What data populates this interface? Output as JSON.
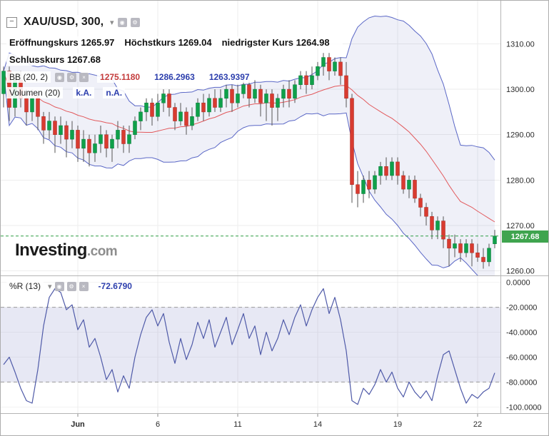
{
  "header": {
    "symbol_title": "XAU/USD, 300,",
    "ohlc": [
      {
        "label": "Eröffnungskurs",
        "value": "1265.97"
      },
      {
        "label": "Höchstkurs",
        "value": "1269.04"
      },
      {
        "label": "niedrigster Kurs",
        "value": "1264.98"
      },
      {
        "label": "Schlusskurs",
        "value": "1267.68"
      }
    ]
  },
  "indicators": {
    "bb": {
      "label": "BB (20, 2)",
      "values": [
        "1275.1180",
        "1286.2963",
        "1263.9397"
      ]
    },
    "volume": {
      "label": "Volumen (20)",
      "values": [
        "k.A.",
        "n.A."
      ]
    },
    "wr": {
      "label": "%R (13)",
      "value": "-72.6790"
    }
  },
  "icons": {
    "collapse": "−",
    "caret": "▾",
    "eye": "◉",
    "gear": "⚙",
    "close": "×"
  },
  "logo": {
    "brand": "Investing",
    "tld": ".com"
  },
  "price_badge": {
    "value": "1267.68"
  },
  "colors": {
    "up_body": "#0fa04a",
    "up_border": "#0b7d3a",
    "down_body": "#d83b30",
    "down_border": "#a82c24",
    "wick": "#555555",
    "bb_line": "#5a67c6",
    "bb_fill": "rgba(100,110,190,0.10)",
    "bb_mid": "#e2595c",
    "grid": "#ededed",
    "axis_text": "#2a2a2a",
    "price_line": "#2f9e44",
    "badge_bg": "#3fa44e",
    "wr_line": "#4f5aa8",
    "wr_band": "rgba(105,112,185,0.16)",
    "wr_dash": "#9b9b9b",
    "value_blue": "#2d3fad",
    "value_red": "#c43c3c"
  },
  "chart_data": [
    {
      "type": "candlestick",
      "title": "XAU/USD 300-minute candles with Bollinger Bands (20,2)",
      "ylim": [
        1259,
        1319.5
      ],
      "x_offset": 4,
      "x_step": 8,
      "body_w": 5,
      "last_price": 1267.68,
      "price_ticks": [
        {
          "price": 1310,
          "label": "1310.00"
        },
        {
          "price": 1300,
          "label": "1300.00"
        },
        {
          "price": 1290,
          "label": "1290.00"
        },
        {
          "price": 1280,
          "label": "1280.00"
        },
        {
          "price": 1270,
          "label": "1270.00"
        },
        {
          "price": 1260,
          "label": "1260.00"
        }
      ],
      "x_ticks": [
        {
          "i": 13,
          "label": "Jun",
          "bold": true
        },
        {
          "i": 27,
          "label": "6"
        },
        {
          "i": 41,
          "label": "11"
        },
        {
          "i": 55,
          "label": "14"
        },
        {
          "i": 69,
          "label": "19"
        },
        {
          "i": 83,
          "label": "22"
        }
      ],
      "bollinger": {
        "period": 20,
        "mult": 2,
        "middle": "1275.1180",
        "upper": "1286.2963",
        "lower": "1263.9397"
      },
      "candles": [
        [
          1299,
          1305,
          1296,
          1304
        ],
        [
          1304,
          1305,
          1293,
          1296
        ],
        [
          1296,
          1303,
          1294,
          1302
        ],
        [
          1302,
          1304,
          1296,
          1298
        ],
        [
          1298,
          1300,
          1292,
          1295
        ],
        [
          1295,
          1300,
          1293,
          1298
        ],
        [
          1298,
          1299,
          1291,
          1294
        ],
        [
          1294,
          1295,
          1288,
          1291
        ],
        [
          1291,
          1295,
          1289,
          1293
        ],
        [
          1293,
          1294,
          1286,
          1290
        ],
        [
          1290,
          1294,
          1288,
          1292
        ],
        [
          1292,
          1293,
          1285,
          1289
        ],
        [
          1289,
          1293,
          1287,
          1291
        ],
        [
          1291,
          1292,
          1284,
          1287
        ],
        [
          1287,
          1291,
          1284,
          1289
        ],
        [
          1289,
          1290,
          1283,
          1286
        ],
        [
          1286,
          1290,
          1284,
          1288
        ],
        [
          1288,
          1292,
          1286,
          1290
        ],
        [
          1290,
          1291,
          1285,
          1287
        ],
        [
          1287,
          1290,
          1284,
          1289
        ],
        [
          1289,
          1293,
          1287,
          1291
        ],
        [
          1291,
          1292,
          1286,
          1288
        ],
        [
          1288,
          1292,
          1286,
          1290
        ],
        [
          1290,
          1294,
          1289,
          1293
        ],
        [
          1293,
          1296,
          1291,
          1295
        ],
        [
          1295,
          1298,
          1293,
          1297
        ],
        [
          1297,
          1298,
          1292,
          1294
        ],
        [
          1294,
          1299,
          1293,
          1297
        ],
        [
          1297,
          1300,
          1295,
          1299
        ],
        [
          1299,
          1300,
          1294,
          1296
        ],
        [
          1296,
          1297,
          1291,
          1293
        ],
        [
          1293,
          1297,
          1292,
          1295
        ],
        [
          1295,
          1296,
          1290,
          1292
        ],
        [
          1292,
          1296,
          1291,
          1294
        ],
        [
          1294,
          1298,
          1293,
          1297
        ],
        [
          1297,
          1299,
          1293,
          1295
        ],
        [
          1295,
          1299,
          1294,
          1298
        ],
        [
          1298,
          1300,
          1295,
          1296
        ],
        [
          1296,
          1300,
          1295,
          1298
        ],
        [
          1298,
          1301,
          1296,
          1300
        ],
        [
          1300,
          1301,
          1295,
          1297
        ],
        [
          1297,
          1301,
          1296,
          1299
        ],
        [
          1299,
          1302,
          1298,
          1301
        ],
        [
          1301,
          1302,
          1296,
          1298
        ],
        [
          1298,
          1302,
          1297,
          1300
        ],
        [
          1300,
          1301,
          1294,
          1297
        ],
        [
          1297,
          1300,
          1293,
          1299
        ],
        [
          1299,
          1300,
          1292,
          1296
        ],
        [
          1296,
          1299,
          1293,
          1298
        ],
        [
          1298,
          1301,
          1296,
          1300
        ],
        [
          1300,
          1302,
          1296,
          1298
        ],
        [
          1298,
          1302,
          1297,
          1301
        ],
        [
          1301,
          1304,
          1300,
          1303
        ],
        [
          1303,
          1304,
          1299,
          1301
        ],
        [
          1301,
          1305,
          1300,
          1303
        ],
        [
          1303,
          1306,
          1302,
          1305
        ],
        [
          1305,
          1308,
          1303,
          1307
        ],
        [
          1307,
          1308,
          1302,
          1304
        ],
        [
          1304,
          1307,
          1303,
          1306
        ],
        [
          1306,
          1307,
          1301,
          1303
        ],
        [
          1303,
          1306,
          1296,
          1298
        ],
        [
          1298,
          1299,
          1275,
          1279
        ],
        [
          1279,
          1282,
          1274,
          1277
        ],
        [
          1277,
          1281,
          1275,
          1280
        ],
        [
          1280,
          1282,
          1276,
          1278
        ],
        [
          1278,
          1282,
          1277,
          1281
        ],
        [
          1281,
          1284,
          1279,
          1283
        ],
        [
          1283,
          1285,
          1280,
          1281
        ],
        [
          1281,
          1285,
          1280,
          1284
        ],
        [
          1284,
          1285,
          1279,
          1281
        ],
        [
          1281,
          1282,
          1277,
          1278
        ],
        [
          1278,
          1281,
          1276,
          1280
        ],
        [
          1280,
          1281,
          1275,
          1276
        ],
        [
          1276,
          1277,
          1272,
          1274
        ],
        [
          1274,
          1275,
          1270,
          1272
        ],
        [
          1272,
          1273,
          1267,
          1269
        ],
        [
          1269,
          1272,
          1267,
          1271
        ],
        [
          1271,
          1272,
          1265,
          1267
        ],
        [
          1267,
          1268,
          1261,
          1265
        ],
        [
          1265,
          1268,
          1263,
          1266
        ],
        [
          1266,
          1267,
          1262,
          1264
        ],
        [
          1264,
          1267,
          1263,
          1266
        ],
        [
          1266,
          1267,
          1261,
          1264
        ],
        [
          1264,
          1266,
          1262,
          1263
        ],
        [
          1263,
          1265,
          1260.5,
          1262
        ],
        [
          1262,
          1266,
          1261,
          1265
        ],
        [
          1265.97,
          1269.04,
          1264.98,
          1267.68
        ]
      ]
    },
    {
      "type": "line",
      "title": "Williams %R (13)",
      "ylim": [
        -105,
        5
      ],
      "ticks": [
        {
          "value": 0,
          "label": "0.0000"
        },
        {
          "value": -20,
          "label": "-20.0000"
        },
        {
          "value": -40,
          "label": "-40.0000"
        },
        {
          "value": -60,
          "label": "-60.0000"
        },
        {
          "value": -80,
          "label": "-80.0000"
        },
        {
          "value": -100,
          "label": "-100.0000"
        }
      ],
      "dashed_levels": [
        -20,
        -80
      ],
      "band": [
        -20,
        -80
      ],
      "last_value": "-72.6790",
      "values": [
        -66,
        -60,
        -72,
        -85,
        -95,
        -97,
        -70,
        -35,
        -12,
        -5,
        -8,
        -22,
        -18,
        -38,
        -30,
        -52,
        -45,
        -60,
        -78,
        -70,
        -88,
        -75,
        -85,
        -60,
        -42,
        -28,
        -22,
        -35,
        -25,
        -48,
        -65,
        -45,
        -62,
        -50,
        -32,
        -45,
        -30,
        -52,
        -40,
        -28,
        -50,
        -38,
        -25,
        -45,
        -35,
        -58,
        -40,
        -55,
        -45,
        -30,
        -42,
        -28,
        -18,
        -35,
        -22,
        -12,
        -5,
        -25,
        -12,
        -30,
        -55,
        -95,
        -98,
        -85,
        -90,
        -82,
        -70,
        -80,
        -72,
        -85,
        -92,
        -80,
        -88,
        -93,
        -87,
        -95,
        -75,
        -58,
        -55,
        -70,
        -85,
        -97,
        -90,
        -93,
        -88,
        -85,
        -72.679
      ]
    }
  ]
}
